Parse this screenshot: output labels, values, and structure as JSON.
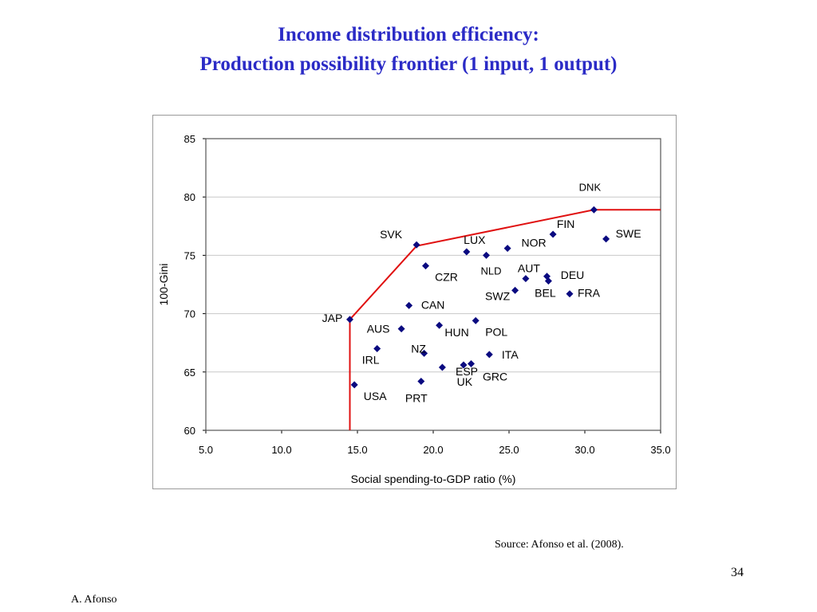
{
  "slide": {
    "title_line1": "Income distribution efficiency:",
    "title_line2": "Production possibility frontier (1 input, 1 output)",
    "source": "Source: Afonso et al. (2008).",
    "page_number": "34",
    "author": "A. Afonso"
  },
  "colors": {
    "title": "#2b2bc6",
    "point": "#0a0a80",
    "frontier": "#e01010",
    "gridline": "#c8c8c8"
  },
  "chart_data": {
    "type": "scatter",
    "xlabel": "Social spending-to-GDP ratio (%)",
    "ylabel": "100-Gini",
    "xlim": [
      5.0,
      35.0
    ],
    "ylim": [
      60,
      85
    ],
    "x_ticks": [
      "5.0",
      "10.0",
      "15.0",
      "20.0",
      "25.0",
      "30.0",
      "35.0"
    ],
    "y_ticks": [
      "60",
      "65",
      "70",
      "75",
      "80",
      "85"
    ],
    "grid": "horizontal",
    "legend": "none",
    "points": [
      {
        "label": "DNK",
        "x": 30.6,
        "y": 78.9
      },
      {
        "label": "FIN",
        "x": 27.9,
        "y": 76.8
      },
      {
        "label": "SWE",
        "x": 31.4,
        "y": 76.4
      },
      {
        "label": "SVK",
        "x": 18.9,
        "y": 75.9
      },
      {
        "label": "LUX",
        "x": 22.2,
        "y": 75.3
      },
      {
        "label": "NOR",
        "x": 24.9,
        "y": 75.6
      },
      {
        "label": "NLD",
        "x": 23.5,
        "y": 75.0
      },
      {
        "label": "CZR",
        "x": 19.5,
        "y": 74.1
      },
      {
        "label": "AUT",
        "x": 26.1,
        "y": 73.0
      },
      {
        "label": "DEU",
        "x": 27.5,
        "y": 73.2
      },
      {
        "label": "BEL",
        "x": 27.6,
        "y": 72.8
      },
      {
        "label": "SWZ",
        "x": 25.4,
        "y": 72.0
      },
      {
        "label": "FRA",
        "x": 29.0,
        "y": 71.7
      },
      {
        "label": "CAN",
        "x": 18.4,
        "y": 70.7
      },
      {
        "label": "JAP",
        "x": 14.5,
        "y": 69.5
      },
      {
        "label": "AUS",
        "x": 17.9,
        "y": 68.7
      },
      {
        "label": "HUN",
        "x": 20.4,
        "y": 69.0
      },
      {
        "label": "POL",
        "x": 22.8,
        "y": 69.4
      },
      {
        "label": "IRL",
        "x": 16.3,
        "y": 67.0
      },
      {
        "label": "NZ",
        "x": 19.4,
        "y": 66.6
      },
      {
        "label": "ESP",
        "x": 22.0,
        "y": 65.6
      },
      {
        "label": "ITA",
        "x": 23.7,
        "y": 66.5
      },
      {
        "label": "GRC",
        "x": 22.5,
        "y": 65.7
      },
      {
        "label": "UK",
        "x": 20.6,
        "y": 65.4
      },
      {
        "label": "USA",
        "x": 14.8,
        "y": 63.9
      },
      {
        "label": "PRT",
        "x": 19.2,
        "y": 64.2
      }
    ],
    "frontier": [
      {
        "x": 14.5,
        "y": 60.0
      },
      {
        "x": 14.5,
        "y": 69.5
      },
      {
        "x": 18.9,
        "y": 75.8
      },
      {
        "x": 30.6,
        "y": 78.9
      },
      {
        "x": 35.0,
        "y": 78.9
      }
    ]
  }
}
